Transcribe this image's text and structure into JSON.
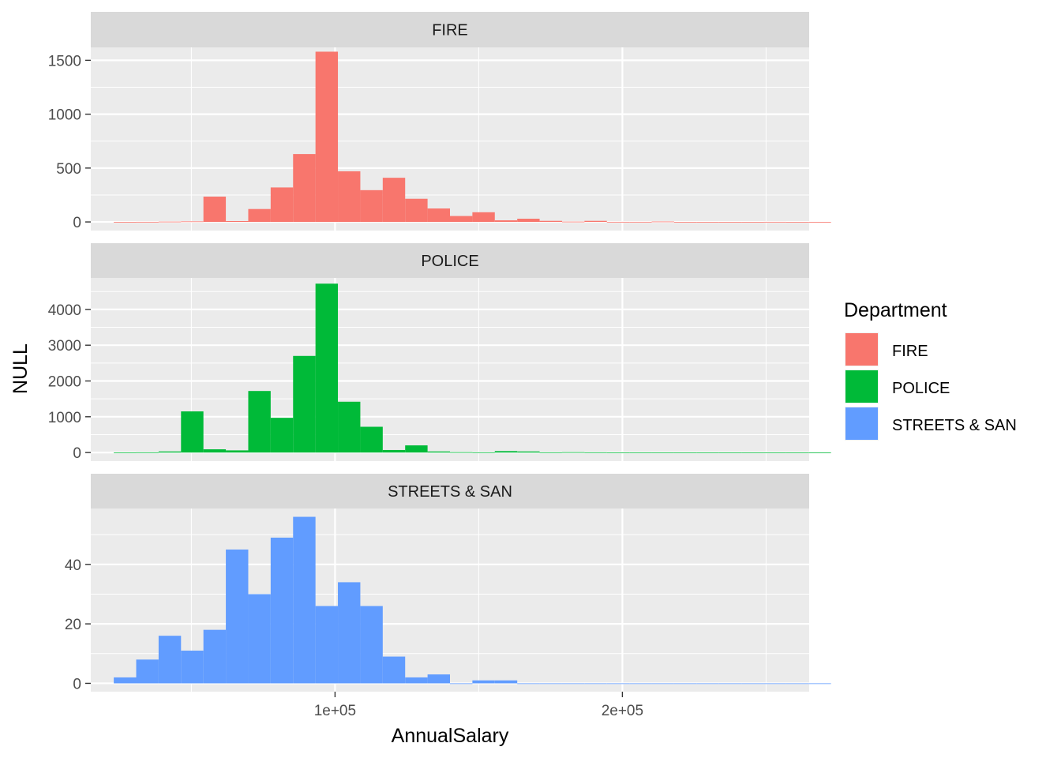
{
  "chart_data": {
    "type": "bar",
    "chart_kind": "histogram",
    "facets": "stacked vertically, free y scales, shared x axis",
    "xlabel": "AnnualSalary",
    "ylabel": "NULL",
    "xlim": [
      15000,
      265000
    ],
    "x_ticks": [
      {
        "value": 100000,
        "label": "1e+05"
      },
      {
        "value": 200000,
        "label": "2e+05"
      }
    ],
    "x_minor_gridlines": [
      50000,
      150000,
      250000
    ],
    "bin_width": 7800,
    "bin_start": 23000,
    "grid": true,
    "legend": {
      "title": "Department",
      "placement": "right",
      "items": [
        {
          "label": "FIRE",
          "color": "#F8766D"
        },
        {
          "label": "POLICE",
          "color": "#00BA38"
        },
        {
          "label": "STREETS & SAN",
          "color": "#619CFF"
        }
      ]
    },
    "panels": [
      {
        "name": "FIRE",
        "color": "#F8766D",
        "ylim": [
          -80,
          1620
        ],
        "y_ticks": [
          0,
          500,
          1000,
          1500
        ],
        "values": [
          0,
          1,
          3,
          5,
          235,
          8,
          120,
          320,
          630,
          1580,
          470,
          295,
          410,
          215,
          125,
          55,
          90,
          15,
          30,
          10,
          3,
          10,
          1,
          1,
          4,
          0,
          0,
          0,
          0,
          1,
          0,
          0
        ]
      },
      {
        "name": "POLICE",
        "color": "#00BA38",
        "ylim": [
          -240,
          4880
        ],
        "y_ticks": [
          0,
          1000,
          2000,
          3000,
          4000
        ],
        "values": [
          0,
          5,
          30,
          1150,
          90,
          60,
          1720,
          970,
          2700,
          4720,
          1420,
          720,
          70,
          200,
          30,
          10,
          5,
          40,
          30,
          5,
          10,
          5,
          2,
          3,
          1,
          1,
          1,
          1,
          1,
          1,
          1,
          1
        ]
      },
      {
        "name": "STREETS & SAN",
        "color": "#619CFF",
        "ylim": [
          -2.8,
          58.8
        ],
        "y_ticks": [
          0,
          20,
          40
        ],
        "values": [
          2,
          8,
          16,
          11,
          18,
          45,
          30,
          49,
          56,
          26,
          34,
          26,
          9,
          2,
          3,
          0,
          1,
          1,
          0,
          0,
          0,
          0,
          0,
          0,
          0,
          0,
          0,
          0,
          0,
          0,
          0,
          0
        ]
      }
    ]
  }
}
